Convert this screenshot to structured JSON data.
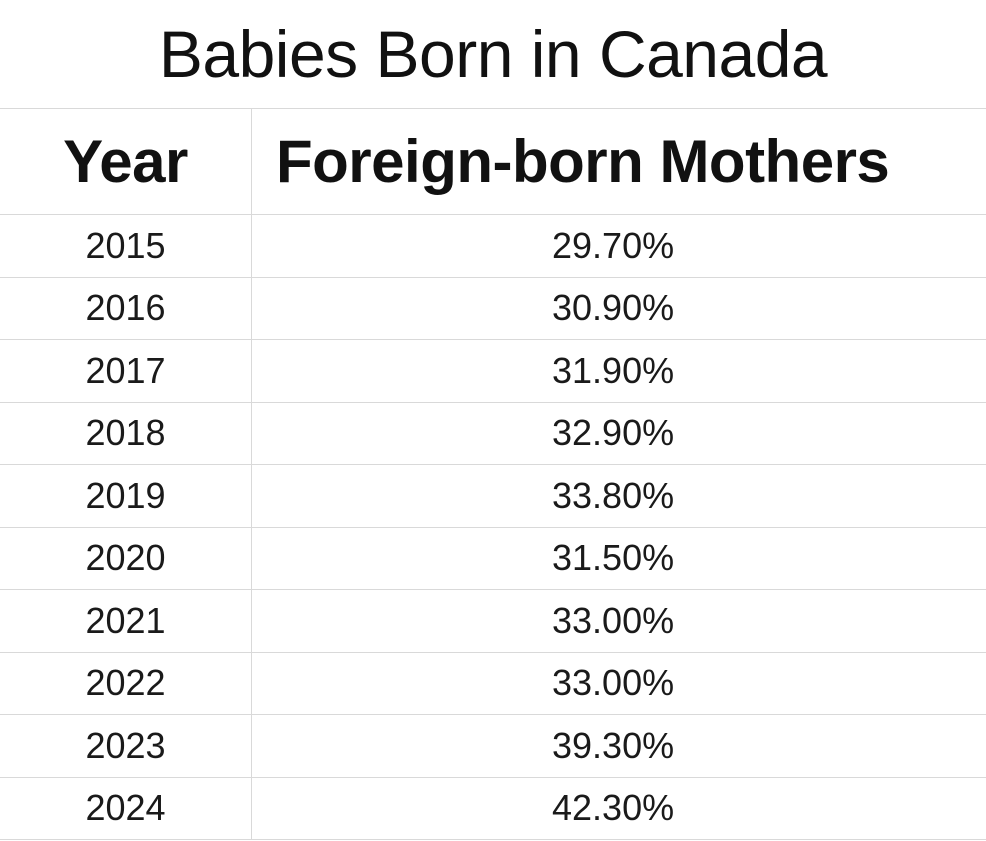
{
  "title": "Babies Born in Canada",
  "headers": {
    "year": "Year",
    "value": "Foreign-born Mothers"
  },
  "rows": [
    {
      "year": "2015",
      "value": "29.70%"
    },
    {
      "year": "2016",
      "value": "30.90%"
    },
    {
      "year": "2017",
      "value": "31.90%"
    },
    {
      "year": "2018",
      "value": "32.90%"
    },
    {
      "year": "2019",
      "value": "33.80%"
    },
    {
      "year": "2020",
      "value": "31.50%"
    },
    {
      "year": "2021",
      "value": "33.00%"
    },
    {
      "year": "2022",
      "value": "33.00%"
    },
    {
      "year": "2023",
      "value": "39.30%"
    },
    {
      "year": "2024",
      "value": "42.30%"
    }
  ],
  "colors": {
    "text": "#111111",
    "gridline": "#d9d9d9",
    "background": "#ffffff"
  }
}
